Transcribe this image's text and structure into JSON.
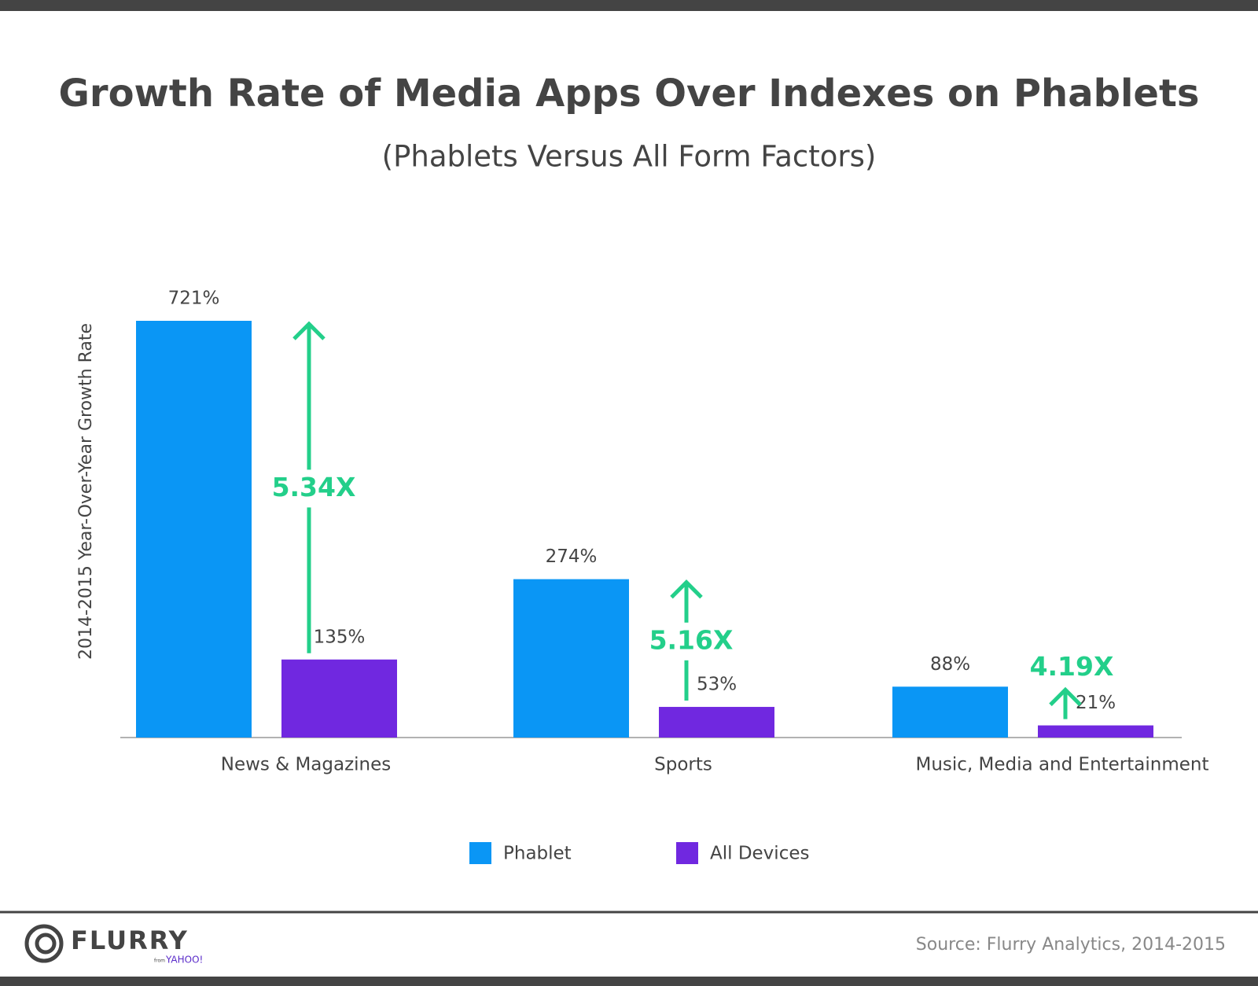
{
  "chart_data": {
    "type": "bar",
    "title": "Growth Rate of Media Apps Over Indexes on Phablets",
    "subtitle": "(Phablets Versus All Form Factors)",
    "y_label": "2014-2015 Year-Over-Year Growth Rate",
    "categories": [
      "News & Magazines",
      "Sports",
      "Music, Media and Entertainment"
    ],
    "series": [
      {
        "name": "Phablet",
        "color": "#0a96f5",
        "values": [
          721,
          274,
          88
        ],
        "value_labels": [
          "721%",
          "274%",
          "88%"
        ]
      },
      {
        "name": "All Devices",
        "color": "#7028e0",
        "values": [
          135,
          53,
          21
        ],
        "value_labels": [
          "135%",
          "53%",
          "21%"
        ]
      }
    ],
    "annotations": [
      "5.34X",
      "5.16X",
      "4.19X"
    ],
    "annotation_color": "#23cf8a"
  },
  "footer": {
    "logo": "FLURRY",
    "logo_from": "from",
    "logo_brand": "YAHOO!",
    "source": "Source: Flurry Analytics, 2014-2015"
  }
}
